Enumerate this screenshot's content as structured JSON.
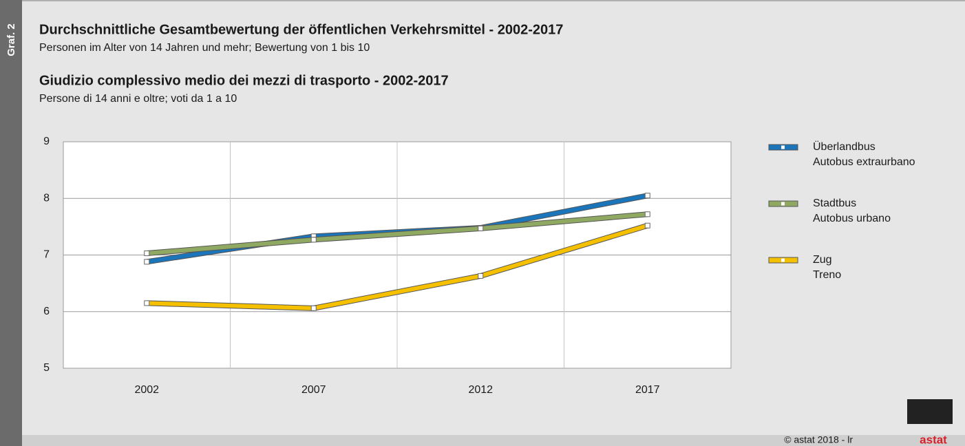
{
  "figure_label": "Graf. 2",
  "credit": "© astat 2018 - lr",
  "logo": "astat",
  "chart_data": {
    "type": "line",
    "titles": [
      {
        "title": "Durchschnittliche Gesamtbewertung der öffentlichen Verkehrsmittel - 2002-2017",
        "subtitle": "Personen im Alter von 14 Jahren und mehr; Bewertung von 1 bis 10"
      },
      {
        "title": "Giudizio complessivo medio dei mezzi di trasporto - 2002-2017",
        "subtitle": "Persone di 14 anni e oltre; voti da 1 a 10"
      }
    ],
    "categories": [
      "2002",
      "2007",
      "2012",
      "2017"
    ],
    "series": [
      {
        "name": [
          "Überlandbus",
          "Autobus extraurbano"
        ],
        "color": "#1b75bb",
        "values": [
          6.88,
          7.33,
          7.48,
          8.05
        ]
      },
      {
        "name": [
          "Stadtbus",
          "Autobus urbano"
        ],
        "color": "#8fa862",
        "values": [
          7.03,
          7.27,
          7.47,
          7.72
        ]
      },
      {
        "name": [
          "Zug",
          "Treno"
        ],
        "color": "#f4c000",
        "values": [
          6.15,
          6.06,
          6.63,
          7.52
        ]
      }
    ],
    "ylim": [
      5,
      9
    ],
    "yticks": [
      5,
      6,
      7,
      8,
      9
    ],
    "grid": true,
    "legend": "right"
  }
}
